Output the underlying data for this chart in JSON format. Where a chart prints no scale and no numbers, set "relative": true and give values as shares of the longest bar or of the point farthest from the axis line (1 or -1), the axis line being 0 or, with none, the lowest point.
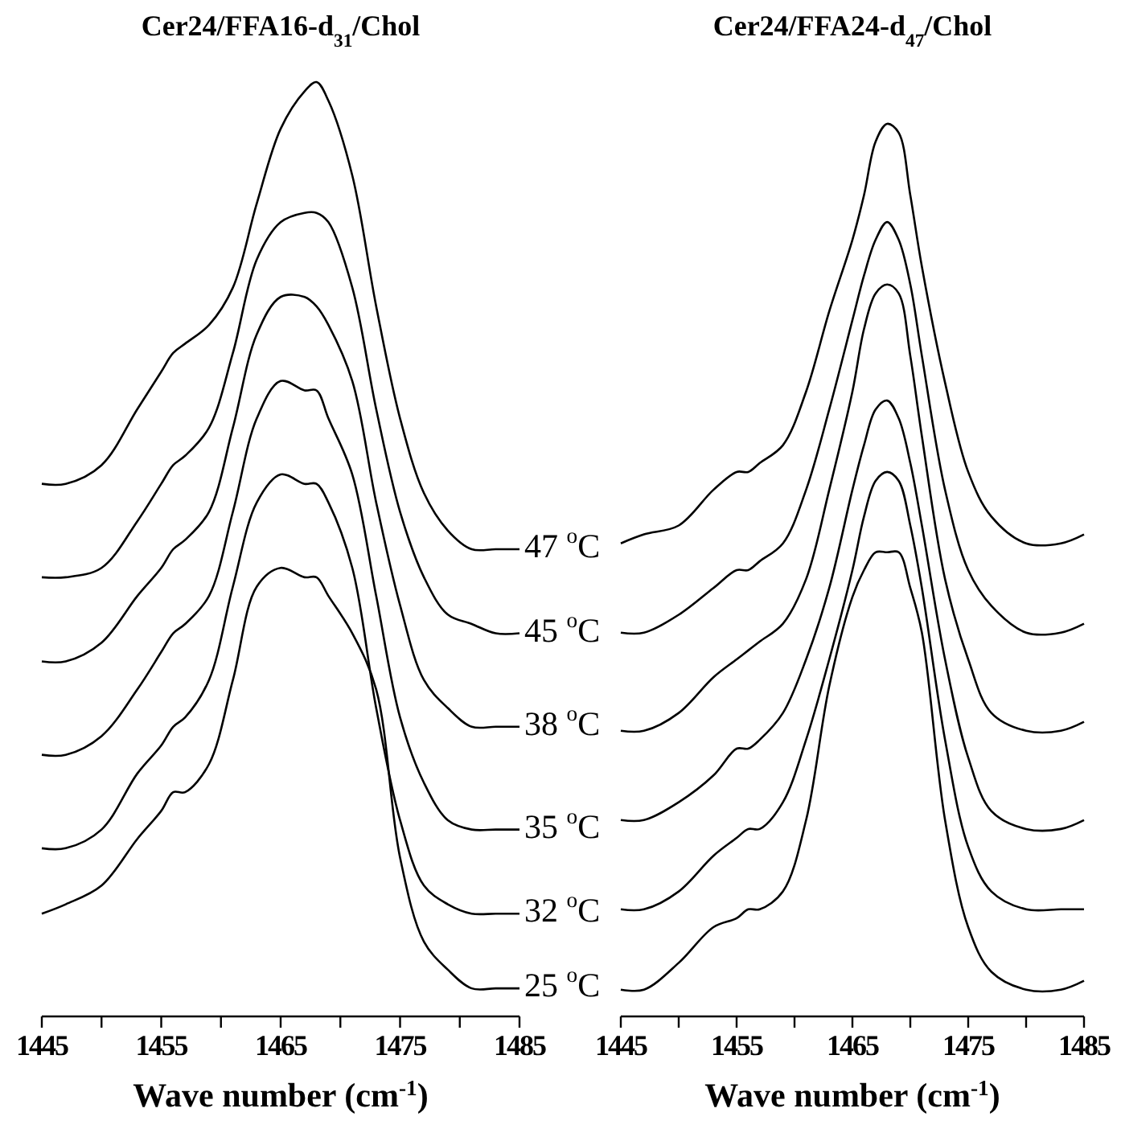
{
  "chart_data": [
    {
      "type": "line",
      "title": "Cer24/FFA16-d$_{31}$/Chol",
      "xlabel": "Wave number (cm$^{-1}$)",
      "relative": true,
      "legend": false,
      "grid": false,
      "xlim": [
        1445,
        1485
      ],
      "xticks": [
        1445,
        {
          "value": 1450,
          "label": null
        },
        1455,
        {
          "value": 1460,
          "label": null
        },
        1465,
        {
          "value": 1470,
          "label": null
        },
        1475,
        {
          "value": 1480,
          "label": null
        },
        1485
      ],
      "x": [
        1445,
        1447,
        1450,
        1453,
        1455,
        1456,
        1457,
        1459,
        1461,
        1463,
        1465,
        1467,
        1468,
        1469,
        1471,
        1473,
        1475,
        1477,
        1479,
        1481,
        1483,
        1485
      ],
      "series": [
        {
          "name": "47 $^{o}$C",
          "color": "#000000",
          "values": [
            0.57,
            0.57,
            0.59,
            0.65,
            0.69,
            0.71,
            0.72,
            0.74,
            0.78,
            0.87,
            0.95,
            0.99,
            1.0,
            0.98,
            0.9,
            0.76,
            0.64,
            0.56,
            0.52,
            0.5,
            0.5,
            0.5
          ]
        },
        {
          "name": "45 $^{o}$C",
          "color": "#000000",
          "values": [
            0.47,
            0.47,
            0.48,
            0.53,
            0.57,
            0.59,
            0.6,
            0.63,
            0.71,
            0.81,
            0.85,
            0.86,
            0.86,
            0.85,
            0.78,
            0.65,
            0.54,
            0.47,
            0.43,
            0.42,
            0.41,
            0.41
          ]
        },
        {
          "name": "38 $^{o}$C",
          "color": "#000000",
          "values": [
            0.38,
            0.38,
            0.4,
            0.45,
            0.48,
            0.5,
            0.51,
            0.54,
            0.63,
            0.73,
            0.77,
            0.77,
            0.76,
            0.74,
            0.68,
            0.55,
            0.44,
            0.36,
            0.33,
            0.31,
            0.31,
            0.31
          ]
        },
        {
          "name": "35 $^{o}$C",
          "color": "#000000",
          "values": [
            0.28,
            0.28,
            0.3,
            0.35,
            0.39,
            0.41,
            0.42,
            0.45,
            0.54,
            0.64,
            0.68,
            0.67,
            0.67,
            0.64,
            0.58,
            0.45,
            0.32,
            0.25,
            0.21,
            0.2,
            0.2,
            0.2
          ]
        },
        {
          "name": "32 $^{o}$C",
          "color": "#000000",
          "values": [
            0.18,
            0.18,
            0.2,
            0.26,
            0.29,
            0.31,
            0.32,
            0.36,
            0.46,
            0.55,
            0.58,
            0.57,
            0.57,
            0.55,
            0.48,
            0.33,
            0.21,
            0.14,
            0.12,
            0.11,
            0.11,
            0.11
          ]
        },
        {
          "name": "25 $^{o}$C",
          "color": "#000000",
          "values": [
            0.11,
            0.12,
            0.14,
            0.19,
            0.22,
            0.24,
            0.24,
            0.27,
            0.36,
            0.46,
            0.48,
            0.47,
            0.47,
            0.45,
            0.41,
            0.35,
            0.17,
            0.08,
            0.05,
            0.03,
            0.03,
            0.03
          ]
        }
      ]
    },
    {
      "type": "line",
      "title": "Cer24/FFA24-d$_{47}$/Chol",
      "xlabel": "Wave number (cm$^{-1}$)",
      "relative": true,
      "legend": false,
      "grid": false,
      "xlim": [
        1445,
        1485
      ],
      "xticks": [
        1445,
        {
          "value": 1450,
          "label": null
        },
        1455,
        {
          "value": 1460,
          "label": null
        },
        1465,
        {
          "value": 1470,
          "label": null
        },
        1475,
        {
          "value": 1480,
          "label": null
        },
        1485
      ],
      "x": [
        1445,
        1447,
        1450,
        1453,
        1455,
        1456,
        1457,
        1459,
        1461,
        1463,
        1465,
        1466,
        1467,
        1468,
        1469,
        1470,
        1471,
        1473,
        1475,
        1477,
        1480,
        1483,
        1485
      ],
      "series": [
        {
          "color": "#000000",
          "values": [
            0.53,
            0.54,
            0.55,
            0.59,
            0.61,
            0.61,
            0.62,
            0.64,
            0.7,
            0.79,
            0.87,
            0.92,
            0.98,
            1.0,
            0.99,
            0.92,
            0.84,
            0.71,
            0.61,
            0.56,
            0.53,
            0.53,
            0.54
          ]
        },
        {
          "color": "#000000",
          "values": [
            0.43,
            0.43,
            0.45,
            0.48,
            0.5,
            0.5,
            0.51,
            0.53,
            0.59,
            0.68,
            0.78,
            0.83,
            0.87,
            0.89,
            0.87,
            0.82,
            0.74,
            0.59,
            0.5,
            0.46,
            0.43,
            0.43,
            0.44
          ]
        },
        {
          "color": "#000000",
          "values": [
            0.32,
            0.32,
            0.34,
            0.38,
            0.4,
            0.41,
            0.42,
            0.44,
            0.49,
            0.59,
            0.7,
            0.77,
            0.81,
            0.82,
            0.81,
            0.74,
            0.65,
            0.49,
            0.4,
            0.34,
            0.32,
            0.32,
            0.33
          ]
        },
        {
          "color": "#000000",
          "values": [
            0.22,
            0.22,
            0.24,
            0.27,
            0.3,
            0.3,
            0.31,
            0.34,
            0.4,
            0.48,
            0.59,
            0.64,
            0.68,
            0.69,
            0.67,
            0.62,
            0.55,
            0.4,
            0.29,
            0.23,
            0.21,
            0.21,
            0.22
          ]
        },
        {
          "color": "#000000",
          "values": [
            0.12,
            0.12,
            0.14,
            0.18,
            0.2,
            0.21,
            0.21,
            0.24,
            0.31,
            0.4,
            0.5,
            0.56,
            0.6,
            0.61,
            0.6,
            0.55,
            0.48,
            0.31,
            0.19,
            0.14,
            0.12,
            0.12,
            0.12
          ]
        },
        {
          "color": "#000000",
          "values": [
            0.03,
            0.03,
            0.06,
            0.1,
            0.11,
            0.12,
            0.12,
            0.14,
            0.22,
            0.37,
            0.47,
            0.5,
            0.52,
            0.52,
            0.52,
            0.48,
            0.43,
            0.22,
            0.1,
            0.05,
            0.03,
            0.03,
            0.04
          ]
        }
      ]
    }
  ]
}
